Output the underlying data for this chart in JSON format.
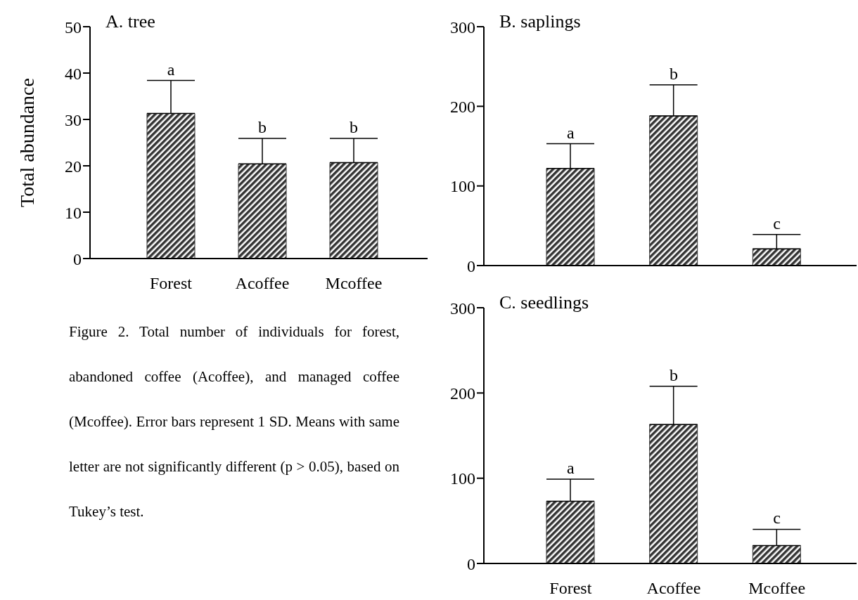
{
  "chart_data": [
    {
      "type": "bar",
      "title": "A. tree",
      "ylabel": "Total abundance",
      "categories": [
        "Forest",
        "Acoffee",
        "Mcoffee"
      ],
      "values": [
        31.3,
        20.4,
        20.7
      ],
      "errors": [
        [
          31.3,
          38.4
        ],
        [
          20.4,
          25.9
        ],
        [
          20.7,
          25.9
        ]
      ],
      "color": "#333333",
      "ylim": [
        0,
        50
      ],
      "yticks": [
        0,
        10,
        20,
        30,
        40,
        50
      ],
      "grid": false,
      "legend": false,
      "annotations": [
        {
          "text": "a",
          "x": "Forest",
          "y": 38.4
        },
        {
          "text": "b",
          "x": "Acoffee",
          "y": 25.9
        },
        {
          "text": "b",
          "x": "Mcoffee",
          "y": 25.9
        },
        "Figure 2. Total number of individuals for forest, abandoned coffee (Acoffee), and managed coffee (Mcoffee). Error bars represent 1 SD. Means with same letter are not significantly different (p > 0.05), based on Tukey’s test."
      ]
    },
    {
      "type": "bar",
      "title": "B. saplings",
      "categories": [
        "Forest",
        "Acoffee",
        "Mcoffee"
      ],
      "values": [
        122,
        188,
        21
      ],
      "errors": [
        [
          122,
          153
        ],
        [
          188,
          227
        ],
        [
          21,
          39
        ]
      ],
      "color": "#333333",
      "ylim": [
        0,
        300
      ],
      "yticks": [
        0,
        100,
        200,
        300
      ],
      "grid": false,
      "legend": false,
      "tick_labels": "y",
      "annotations": [
        {
          "text": "a",
          "x": "Forest",
          "y": 153
        },
        {
          "text": "b",
          "x": "Acoffee",
          "y": 227
        },
        {
          "text": "c",
          "x": "Mcoffee",
          "y": 39
        }
      ]
    },
    {
      "type": "bar",
      "title": "C. seedlings",
      "categories": [
        "Forest",
        "Acoffee",
        "Mcoffee"
      ],
      "values": [
        73,
        163,
        21
      ],
      "errors": [
        [
          73,
          99
        ],
        [
          163,
          208
        ],
        [
          21,
          40
        ]
      ],
      "color": "#333333",
      "ylim": [
        0,
        300
      ],
      "yticks": [
        0,
        100,
        200,
        300
      ],
      "grid": false,
      "legend": false,
      "annotations": [
        {
          "text": "a",
          "x": "Forest",
          "y": 99
        },
        {
          "text": "b",
          "x": "Acoffee",
          "y": 208
        },
        {
          "text": "c",
          "x": "Mcoffee",
          "y": 40
        }
      ]
    }
  ]
}
